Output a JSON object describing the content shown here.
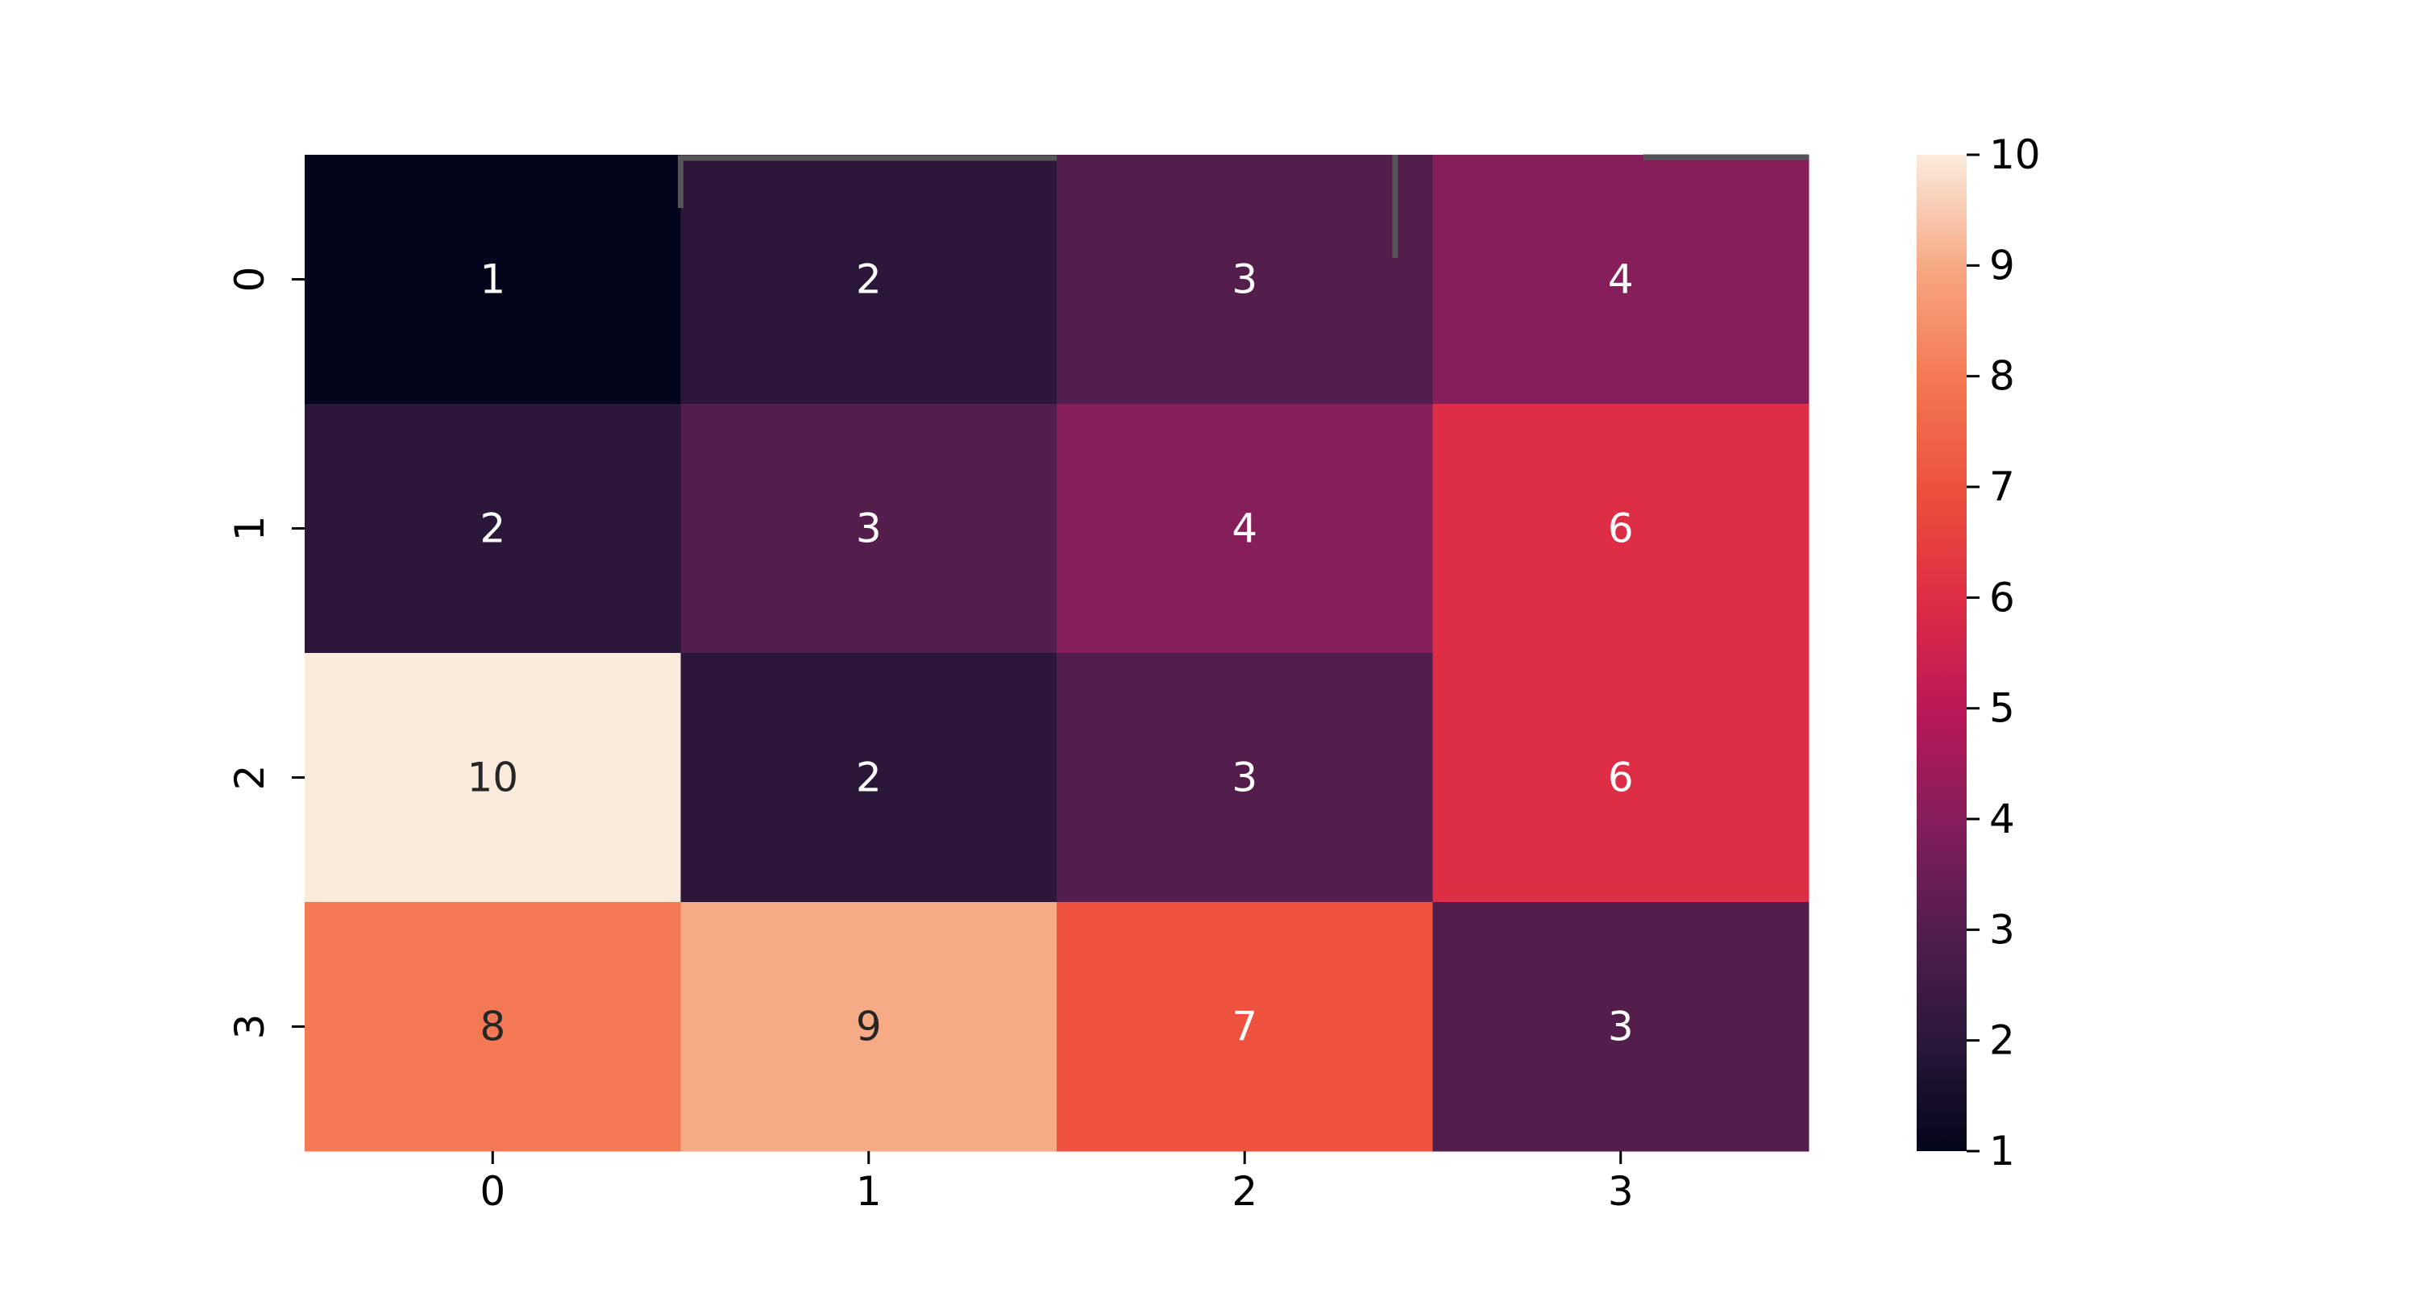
{
  "chart_data": {
    "type": "heatmap",
    "x_categories": [
      "0",
      "1",
      "2",
      "3"
    ],
    "y_categories": [
      "0",
      "1",
      "2",
      "3"
    ],
    "values": [
      [
        1,
        2,
        3,
        4
      ],
      [
        2,
        3,
        4,
        6
      ],
      [
        10,
        2,
        3,
        6
      ],
      [
        8,
        9,
        7,
        3
      ]
    ],
    "value_range": [
      1,
      10
    ],
    "colormap": "rocket",
    "colorbar": {
      "ticks": [
        "1",
        "2",
        "3",
        "4",
        "5",
        "6",
        "7",
        "8",
        "9",
        "10"
      ],
      "placement": "right"
    },
    "annotations": true,
    "title": "",
    "xlabel": "",
    "ylabel": "",
    "grid": false,
    "overlay_marks": [
      {
        "shape": "bracket",
        "row": 0,
        "from_col": 1,
        "to_col": 1
      },
      {
        "shape": "tick",
        "row": 0,
        "col": 2
      },
      {
        "shape": "line",
        "row": 0,
        "col": 3
      }
    ]
  },
  "colors": {
    "annotation_light": "#ffffff",
    "annotation_dark": "#262626",
    "axis": "#000000",
    "overlay": "#555555",
    "background": "#ffffff"
  }
}
